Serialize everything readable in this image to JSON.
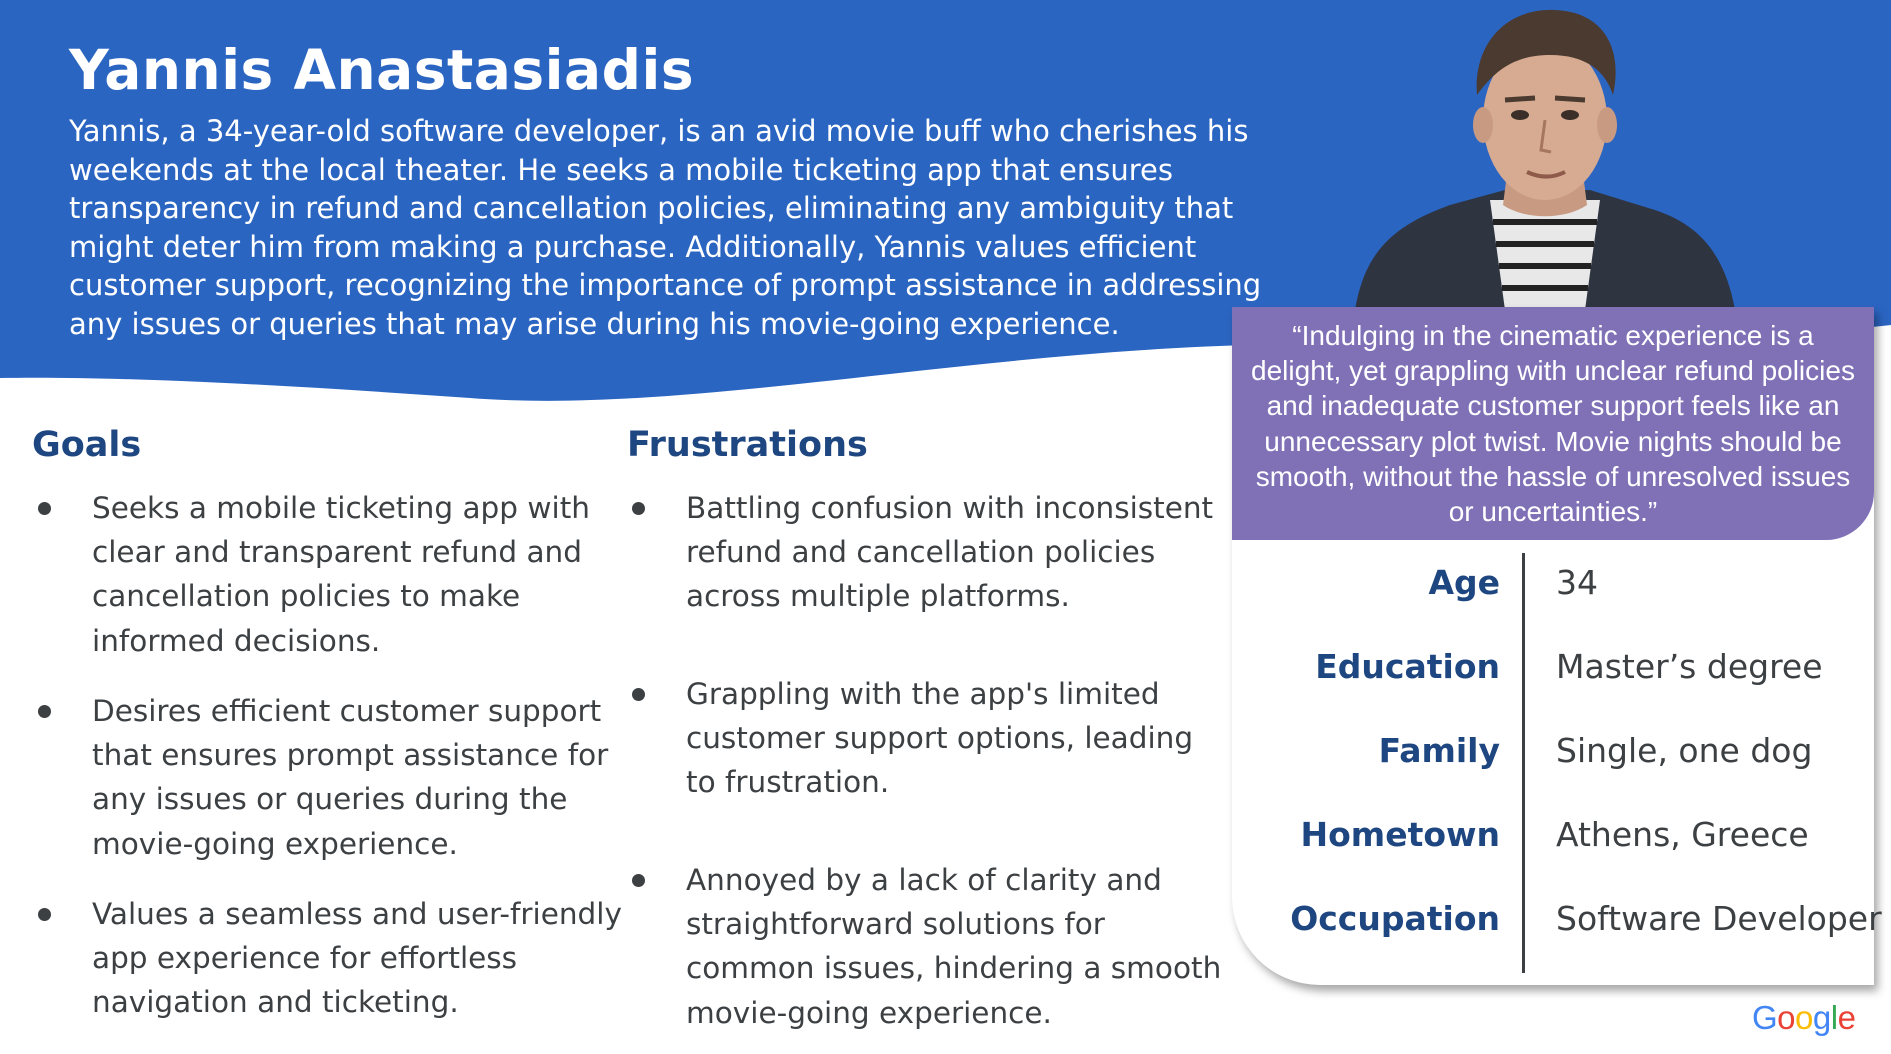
{
  "persona": {
    "name": "Yannis Anastasiadis",
    "bio": "Yannis, a 34-year-old software developer, is an avid movie buff who cherishes his weekends at the local theater. He seeks a mobile ticketing app that ensures transparency in refund and cancellation policies, eliminating any ambiguity that might deter him from making a purchase. Additionally, Yannis values efficient customer support, recognizing the importance of prompt assistance in addressing any issues or queries that may arise during his movie-going experience.",
    "quote": "“Indulging in the cinematic experience is a delight, yet grappling with unclear refund policies and inadequate customer support feels like an unnecessary plot twist. Movie nights should be smooth, without the hassle of unresolved issues or uncertainties.”"
  },
  "facts": [
    {
      "label": "Age",
      "value": "34"
    },
    {
      "label": "Education",
      "value": "Master’s degree"
    },
    {
      "label": "Family",
      "value": "Single, one dog"
    },
    {
      "label": "Hometown",
      "value": "Athens, Greece"
    },
    {
      "label": "Occupation",
      "value": "Software Developer"
    }
  ],
  "goals": {
    "title": "Goals",
    "items": [
      "Seeks a mobile ticketing app with clear and transparent refund and cancellation policies to make informed decisions.",
      "Desires efficient customer support that ensures prompt assistance for any issues or queries during the movie-going experience.",
      "Values a seamless and user-friendly app experience for effortless navigation and ticketing."
    ]
  },
  "frustrations": {
    "title": "Frustrations",
    "items": [
      "Battling confusion with inconsistent refund and cancellation policies across multiple platforms.",
      "Grappling with the app's limited customer support options, leading to frustration.",
      "Annoyed by a lack of clarity and straightforward solutions for common issues, hindering a smooth movie-going experience."
    ]
  },
  "brand": {
    "letters": [
      "G",
      "o",
      "o",
      "g",
      "l",
      "e"
    ],
    "colors": [
      "#4285f4",
      "#ea4335",
      "#fbbc05",
      "#4285f4",
      "#34a853",
      "#ea4335"
    ]
  },
  "colors": {
    "header": "#2b65c2",
    "quote_background": "#8071b7",
    "heading": "#1e4680",
    "body_text": "#3c4043"
  },
  "icons": [
    "profile-photo"
  ]
}
